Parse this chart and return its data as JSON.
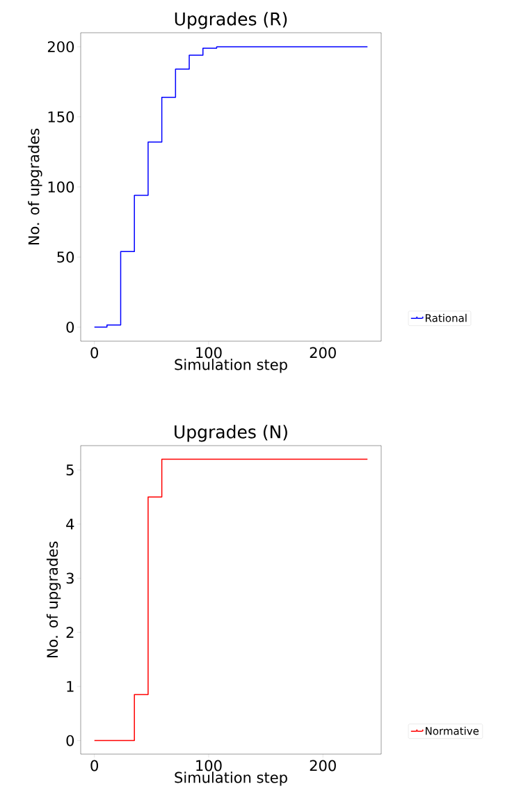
{
  "chart_data": [
    {
      "type": "step",
      "title": "Upgrades (R)",
      "xlabel": "Simulation step",
      "ylabel": "No. of upgrades",
      "x": [
        0,
        11,
        23,
        35,
        47,
        59,
        71,
        83,
        95,
        107,
        239
      ],
      "series": [
        {
          "name": "Rational",
          "color": "#0000ff",
          "values": [
            0,
            1.6,
            54,
            94,
            132,
            164,
            184,
            194,
            199,
            200,
            200
          ]
        }
      ],
      "xlim": [
        -12,
        251
      ],
      "ylim": [
        -10,
        210
      ],
      "xticks": [
        0,
        100,
        200
      ],
      "yticks": [
        0,
        50,
        100,
        150,
        200
      ],
      "legend": "right",
      "grid": false
    },
    {
      "type": "step",
      "title": "Upgrades (N)",
      "xlabel": "Simulation step",
      "ylabel": "No. of upgrades",
      "x": [
        0,
        35,
        47,
        59,
        239
      ],
      "series": [
        {
          "name": "Normative",
          "color": "#ff0000",
          "values": [
            0,
            0.85,
            4.5,
            5.2,
            5.2
          ]
        }
      ],
      "xlim": [
        -12,
        251
      ],
      "ylim": [
        -0.25,
        5.45
      ],
      "xticks": [
        0,
        100,
        200
      ],
      "yticks": [
        0,
        1,
        2,
        3,
        4,
        5
      ],
      "legend": "right",
      "grid": false
    }
  ]
}
